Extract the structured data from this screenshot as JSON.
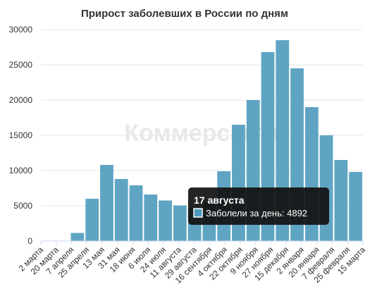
{
  "chart_data": {
    "type": "bar",
    "title": "Прирост заболевших в России по дням",
    "watermark": "Коммерсантъ",
    "series_color": "#4e9bbd",
    "ylim": [
      0,
      30000
    ],
    "yticks": [
      0,
      5000,
      10000,
      15000,
      20000,
      25000,
      30000
    ],
    "x_tick_labels": [
      "2 марта",
      "20 марта",
      "7 апреля",
      "25 апреля",
      "13 мая",
      "31 мая",
      "18 июня",
      "6 июля",
      "24 июля",
      "11 августа",
      "29 августа",
      "16 сентября",
      "4 октября",
      "22 октября",
      "9 ноября",
      "27 ноября",
      "15 декабря",
      "2 января",
      "20 января",
      "7 февраля",
      "25 февраля",
      "15 марта"
    ],
    "series": [
      {
        "name": "Заболели за день",
        "x": [
          "2 марта",
          "20 марта",
          "7 апреля",
          "25 апреля",
          "13 мая",
          "31 мая",
          "18 июня",
          "6 июля",
          "24 июля",
          "11 августа",
          "29 августа",
          "16 сентября",
          "4 октября",
          "22 октября",
          "9 ноября",
          "27 ноября",
          "15 декабря",
          "2 января",
          "20 января",
          "7 февраля",
          "25 февраля",
          "15 марта"
        ],
        "values": [
          0,
          50,
          1150,
          6000,
          10800,
          8800,
          7900,
          6600,
          5750,
          5050,
          4700,
          5500,
          9900,
          16500,
          20000,
          26800,
          28500,
          24500,
          19000,
          15000,
          11500,
          9800
        ]
      }
    ],
    "tooltip": {
      "title": "17 августа",
      "series_label": "Заболели за день: 4892",
      "x": "17 августа",
      "value": 4892
    }
  }
}
